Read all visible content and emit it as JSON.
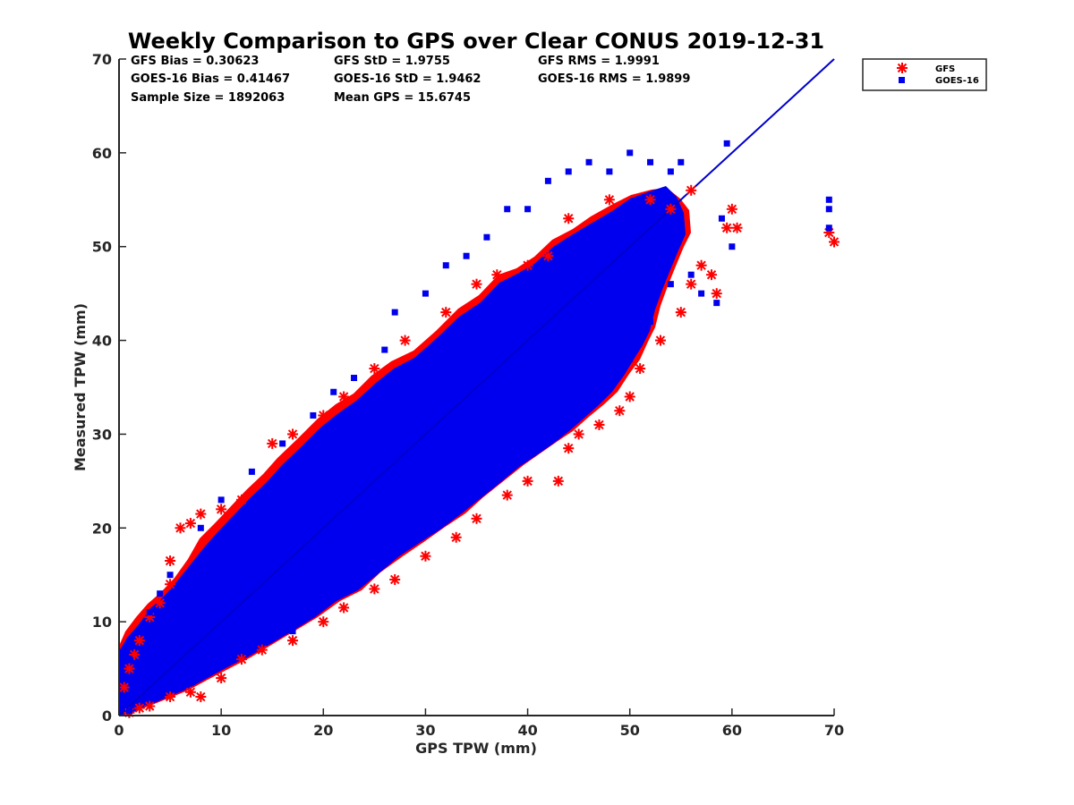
{
  "chart_data": {
    "type": "scatter",
    "title": "Weekly Comparison to GPS over Clear CONUS 2019-12-31",
    "xlabel": "GPS TPW (mm)",
    "ylabel": "Measured TPW (mm)",
    "xlim": [
      0,
      70
    ],
    "ylim": [
      0,
      70
    ],
    "xticks": [
      "0",
      "10",
      "20",
      "30",
      "40",
      "50",
      "60",
      "70"
    ],
    "yticks": [
      "0",
      "10",
      "20",
      "30",
      "40",
      "50",
      "60",
      "70"
    ],
    "grid": false,
    "legend_position": "top-right outside",
    "stats": [
      "GFS Bias = 0.30623",
      "GFS StD = 1.9755",
      "GFS RMS = 1.9991",
      "GOES-16 Bias = 0.41467",
      "GOES-16 StD = 1.9462",
      "GOES-16 RMS = 1.9899",
      "Sample Size = 1892063",
      "Mean GPS = 15.6745"
    ],
    "reference_line": {
      "x": [
        0,
        70
      ],
      "y": [
        0,
        70
      ],
      "color": "#0000cc"
    },
    "series": [
      {
        "name": "GFS",
        "marker": "asterisk",
        "color": "#ff0000",
        "points": [
          [
            0.5,
            3
          ],
          [
            1,
            5
          ],
          [
            1.5,
            6.5
          ],
          [
            2,
            8
          ],
          [
            3,
            10.5
          ],
          [
            4,
            12
          ],
          [
            5,
            14
          ],
          [
            5,
            16.5
          ],
          [
            6,
            20
          ],
          [
            7,
            20.5
          ],
          [
            8,
            21.5
          ],
          [
            10,
            22
          ],
          [
            12,
            23
          ],
          [
            15,
            29
          ],
          [
            17,
            30
          ],
          [
            20,
            32
          ],
          [
            22,
            34
          ],
          [
            25,
            37
          ],
          [
            28,
            40
          ],
          [
            32,
            43
          ],
          [
            35,
            46
          ],
          [
            37,
            47
          ],
          [
            40,
            48
          ],
          [
            42,
            49
          ],
          [
            44,
            53
          ],
          [
            48,
            55
          ],
          [
            52,
            55
          ],
          [
            54,
            54
          ],
          [
            56,
            56
          ],
          [
            1,
            0.3
          ],
          [
            2,
            0.8
          ],
          [
            3,
            1
          ],
          [
            5,
            2
          ],
          [
            7,
            2.5
          ],
          [
            8,
            2
          ],
          [
            10,
            4
          ],
          [
            12,
            6
          ],
          [
            14,
            7
          ],
          [
            17,
            8
          ],
          [
            20,
            10
          ],
          [
            22,
            11.5
          ],
          [
            25,
            13.5
          ],
          [
            27,
            14.5
          ],
          [
            30,
            17
          ],
          [
            33,
            19
          ],
          [
            35,
            21
          ],
          [
            38,
            23.5
          ],
          [
            40,
            25
          ],
          [
            43,
            25
          ],
          [
            44,
            28.5
          ],
          [
            45,
            30
          ],
          [
            47,
            31
          ],
          [
            49,
            32.5
          ],
          [
            50,
            34
          ],
          [
            51,
            37
          ],
          [
            53,
            40
          ],
          [
            55,
            43
          ],
          [
            56,
            46
          ],
          [
            57,
            48
          ],
          [
            58,
            47
          ],
          [
            58.5,
            45
          ],
          [
            59.5,
            52
          ],
          [
            60,
            54
          ],
          [
            60.5,
            52
          ],
          [
            69.5,
            51.5
          ],
          [
            70,
            50.5
          ]
        ]
      },
      {
        "name": "GOES-16",
        "marker": "square",
        "color": "#0000ee",
        "points": [
          [
            0.5,
            4
          ],
          [
            1,
            6
          ],
          [
            2,
            9
          ],
          [
            3,
            11
          ],
          [
            4,
            13
          ],
          [
            5,
            15
          ],
          [
            8,
            20
          ],
          [
            10,
            23
          ],
          [
            13,
            26
          ],
          [
            16,
            29
          ],
          [
            19,
            32
          ],
          [
            21,
            34.5
          ],
          [
            23,
            36
          ],
          [
            26,
            39
          ],
          [
            27,
            43
          ],
          [
            30,
            45
          ],
          [
            32,
            48
          ],
          [
            34,
            49
          ],
          [
            36,
            51
          ],
          [
            38,
            54
          ],
          [
            40,
            54
          ],
          [
            42,
            57
          ],
          [
            44,
            58
          ],
          [
            46,
            59
          ],
          [
            48,
            58
          ],
          [
            50,
            60
          ],
          [
            52,
            59
          ],
          [
            54,
            58
          ],
          [
            55,
            59
          ],
          [
            59,
            53
          ],
          [
            59.5,
            61
          ],
          [
            69.5,
            54
          ],
          [
            69.5,
            55
          ],
          [
            69.5,
            52
          ],
          [
            1,
            0.5
          ],
          [
            3,
            2
          ],
          [
            6,
            4
          ],
          [
            9,
            5
          ],
          [
            11,
            6
          ],
          [
            14,
            8
          ],
          [
            17,
            9
          ],
          [
            20,
            12
          ],
          [
            23,
            14
          ],
          [
            25,
            16
          ],
          [
            28,
            19
          ],
          [
            31,
            21
          ],
          [
            34,
            23
          ],
          [
            36,
            25
          ],
          [
            40,
            28
          ],
          [
            43,
            31
          ],
          [
            45,
            33
          ],
          [
            48,
            36
          ],
          [
            50,
            38
          ],
          [
            52,
            42
          ],
          [
            54,
            46
          ],
          [
            56,
            47
          ],
          [
            57,
            45
          ],
          [
            58.5,
            44
          ],
          [
            60,
            50
          ]
        ]
      }
    ]
  }
}
